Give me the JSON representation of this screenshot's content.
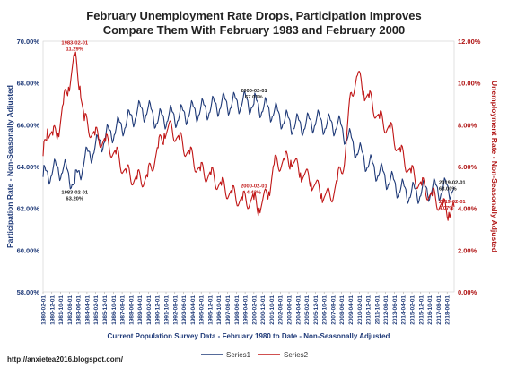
{
  "chart_data": {
    "type": "line",
    "title": [
      "February Unemployment Rate Drops, Participation Improves",
      "Compare Them With February 1983 and February 2000"
    ],
    "xlabel": "Current Population Survey Data - February 1980 to Date - Non-Seasonally Adjusted",
    "ylabel_left": "Participation Rate - Non-Seasonally Adjusted",
    "ylabel_right": "Unemployment Rate - Non-Seasonally Adjusted",
    "yticks_left": [
      "58.00%",
      "60.00%",
      "62.00%",
      "64.00%",
      "66.00%",
      "68.00%",
      "70.00%"
    ],
    "yticks_right": [
      "0.00%",
      "2.00%",
      "4.00%",
      "6.00%",
      "8.00%",
      "10.00%",
      "12.00%"
    ],
    "ylim_left": [
      58,
      70
    ],
    "ylim_right": [
      0,
      12
    ],
    "xticks": [
      "1980-02-01",
      "1980-12-01",
      "1981-10-01",
      "1982-08-01",
      "1983-06-01",
      "1984-04-01",
      "1985-02-01",
      "1985-12-01",
      "1986-10-01",
      "1987-08-01",
      "1988-06-01",
      "1989-04-01",
      "1990-02-01",
      "1990-12-01",
      "1991-10-01",
      "1992-08-01",
      "1993-06-01",
      "1994-04-01",
      "1995-02-01",
      "1995-12-01",
      "1996-10-01",
      "1997-08-01",
      "1998-06-01",
      "1999-04-01",
      "2000-02-01",
      "2000-12-01",
      "2001-10-01",
      "2002-08-01",
      "2003-06-01",
      "2004-04-01",
      "2005-02-01",
      "2005-12-01",
      "2006-10-01",
      "2007-08-01",
      "2008-06-01",
      "2009-04-01",
      "2010-02-01",
      "2010-12-01",
      "2011-10-01",
      "2012-08-01",
      "2013-06-01",
      "2014-04-01",
      "2015-02-01",
      "2015-12-01",
      "2016-10-01",
      "2017-08-01",
      "2018-06-01"
    ],
    "x_range": [
      1980.083,
      2019.083
    ],
    "legend_position": "bottom",
    "grid": false,
    "series": [
      {
        "name": "Series1",
        "axis": "left",
        "color": "#1f3a78",
        "anchor_x": [
          1980.083,
          1981.0,
          1982.0,
          1983.083,
          1984.0,
          1985.0,
          1986.0,
          1987.0,
          1988.0,
          1989.0,
          1990.0,
          1991.0,
          1992.0,
          1993.0,
          1994.0,
          1995.0,
          1996.0,
          1997.0,
          1998.0,
          1999.0,
          2000.083,
          2001.0,
          2002.0,
          2003.0,
          2004.0,
          2005.0,
          2006.0,
          2007.0,
          2008.0,
          2009.0,
          2010.0,
          2011.0,
          2012.0,
          2013.0,
          2014.0,
          2015.0,
          2016.0,
          2017.0,
          2018.0,
          2019.083
        ],
        "anchor_y": [
          63.5,
          63.8,
          63.9,
          63.2,
          64.3,
          64.9,
          65.4,
          65.8,
          66.1,
          66.6,
          66.7,
          66.2,
          66.4,
          66.4,
          66.6,
          66.7,
          66.8,
          67.0,
          67.0,
          67.1,
          67.0,
          66.8,
          66.6,
          66.2,
          66.0,
          66.0,
          66.2,
          66.0,
          66.0,
          65.4,
          64.7,
          64.1,
          63.7,
          63.3,
          62.9,
          62.7,
          62.8,
          62.9,
          62.9,
          63.0
        ],
        "seasonal_amplitude": 0.55
      },
      {
        "name": "Series2",
        "axis": "right",
        "color": "#c01616",
        "anchor_x": [
          1980.083,
          1980.5,
          1981.0,
          1981.5,
          1982.0,
          1982.5,
          1983.083,
          1983.6,
          1984.0,
          1985.0,
          1986.0,
          1987.0,
          1988.0,
          1989.0,
          1990.0,
          1991.0,
          1991.6,
          1992.3,
          1993.0,
          1994.0,
          1995.0,
          1996.0,
          1997.0,
          1998.0,
          1999.0,
          2000.083,
          2000.6,
          2001.5,
          2002.0,
          2003.0,
          2003.6,
          2004.5,
          2005.5,
          2006.5,
          2007.3,
          2008.0,
          2008.7,
          2009.3,
          2009.9,
          2010.5,
          2011.0,
          2012.0,
          2013.0,
          2014.0,
          2015.0,
          2016.0,
          2017.0,
          2018.0,
          2018.6,
          2019.083
        ],
        "anchor_y": [
          6.5,
          7.8,
          7.5,
          7.6,
          9.0,
          9.8,
          11.29,
          9.8,
          8.2,
          7.5,
          7.2,
          6.6,
          5.7,
          5.4,
          5.5,
          6.9,
          7.6,
          7.8,
          7.3,
          6.6,
          5.8,
          5.6,
          5.1,
          4.7,
          4.4,
          4.43,
          4.0,
          4.8,
          6.1,
          6.3,
          6.3,
          5.7,
          5.3,
          4.7,
          4.5,
          5.3,
          6.4,
          9.5,
          10.4,
          9.6,
          9.3,
          8.3,
          7.8,
          6.7,
          5.7,
          5.1,
          4.6,
          4.1,
          3.8,
          4.07
        ],
        "seasonal_amplitude": 0.45
      }
    ],
    "annotations": [
      {
        "lines": [
          "1983-02-01",
          "11.29%"
        ],
        "x": 1983.083,
        "y": 11.29,
        "axis": "right",
        "color": "#c01616",
        "where": "above"
      },
      {
        "lines": [
          "1983-02-01",
          "63.20%"
        ],
        "x": 1983.083,
        "y": 63.2,
        "axis": "left",
        "color": "#1a1a1a",
        "where": "below"
      },
      {
        "lines": [
          "2000-02-01",
          "67.01%"
        ],
        "x": 2000.083,
        "y": 67.01,
        "axis": "left",
        "color": "#1a1a1a",
        "where": "above"
      },
      {
        "lines": [
          "2000-02-01",
          "4.43%"
        ],
        "x": 2000.083,
        "y": 4.43,
        "axis": "right",
        "color": "#c01616",
        "where": "above"
      },
      {
        "lines": [
          "2019-02-01",
          "63.00%"
        ],
        "x": 2019.083,
        "y": 63.0,
        "axis": "left",
        "color": "#1a1a1a",
        "where": "right"
      },
      {
        "lines": [
          "2019-02-01",
          "4.07%"
        ],
        "x": 2019.083,
        "y": 4.07,
        "axis": "right",
        "color": "#c01616",
        "where": "right"
      }
    ]
  },
  "footer": {
    "url": "http://anxietea2016.blogspot.com/"
  }
}
